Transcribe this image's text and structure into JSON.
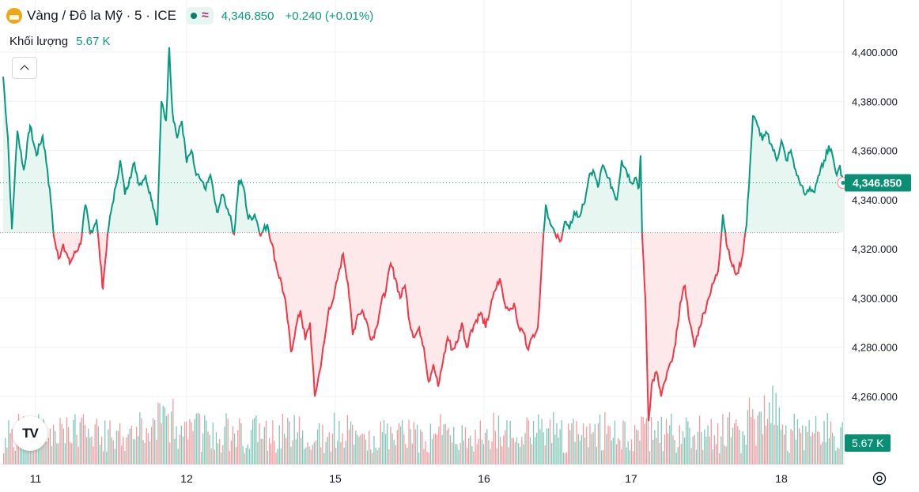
{
  "header": {
    "symbol": "Vàng / Đô la Mỹ · 5 · ICE",
    "approx_symbol": "≈",
    "price": "4,346.850",
    "change": "+0.240 (+0.01%)",
    "volume_label": "Khối lượng",
    "volume_value": "5.67 K"
  },
  "colors": {
    "up": "#089981",
    "down": "#f23645",
    "up_fill": "#e8f6f2",
    "down_fill": "#fde9ea",
    "vol_up": "#7fc7b6",
    "vol_down": "#f39a9e",
    "grid": "#eef0f3",
    "label_bg": "#0b8f74"
  },
  "icons": {
    "logo": "tradingview-logo-icon",
    "collapse": "chevron-up-icon",
    "settings": "settings-icon",
    "symbol": "gold-icon"
  },
  "chart_data": {
    "type": "line",
    "baseline": 4326.6,
    "last_price_label": "4,346.850",
    "volume_label": "5.67 K",
    "ylim": [
      4238,
      4412
    ],
    "yticks": [
      4260,
      4280,
      4300,
      4320,
      4340,
      4360,
      4380,
      4400
    ],
    "ytick_labels": [
      "4,260.000",
      "4,280.000",
      "4,300.000",
      "4,320.000",
      "4,340.000",
      "4,360.000",
      "4,380.000",
      "4,400.000"
    ],
    "x_days": [
      "11",
      "12",
      "15",
      "16",
      "17",
      "18"
    ],
    "grid": true,
    "series": [
      {
        "points": [
          [
            0,
            4390
          ],
          [
            6,
            4365
          ],
          [
            11,
            4328
          ],
          [
            18,
            4368
          ],
          [
            26,
            4352
          ],
          [
            34,
            4370
          ],
          [
            42,
            4358
          ],
          [
            50,
            4366
          ],
          [
            56,
            4352
          ],
          [
            60,
            4340
          ],
          [
            64,
            4325
          ],
          [
            70,
            4316
          ],
          [
            76,
            4322
          ],
          [
            84,
            4314
          ],
          [
            92,
            4319
          ],
          [
            98,
            4322
          ],
          [
            104,
            4338
          ],
          [
            110,
            4326
          ],
          [
            118,
            4332
          ],
          [
            126,
            4304
          ],
          [
            132,
            4326
          ],
          [
            138,
            4338
          ],
          [
            142,
            4345
          ],
          [
            148,
            4356
          ],
          [
            154,
            4342
          ],
          [
            160,
            4349
          ],
          [
            166,
            4355
          ],
          [
            172,
            4346
          ],
          [
            180,
            4350
          ],
          [
            188,
            4340
          ],
          [
            195,
            4330
          ],
          [
            200,
            4380
          ],
          [
            206,
            4372
          ],
          [
            210,
            4402
          ],
          [
            214,
            4376
          ],
          [
            220,
            4365
          ],
          [
            226,
            4372
          ],
          [
            232,
            4355
          ],
          [
            238,
            4360
          ],
          [
            244,
            4350
          ],
          [
            250,
            4348
          ],
          [
            256,
            4344
          ],
          [
            262,
            4350
          ],
          [
            270,
            4335
          ],
          [
            278,
            4342
          ],
          [
            286,
            4334
          ],
          [
            292,
            4326
          ],
          [
            298,
            4348
          ],
          [
            304,
            4345
          ],
          [
            310,
            4332
          ],
          [
            318,
            4334
          ],
          [
            326,
            4326
          ],
          [
            334,
            4330
          ],
          [
            340,
            4322
          ],
          [
            346,
            4312
          ],
          [
            352,
            4306
          ],
          [
            358,
            4296
          ],
          [
            364,
            4278
          ],
          [
            370,
            4288
          ],
          [
            376,
            4295
          ],
          [
            382,
            4283
          ],
          [
            388,
            4290
          ],
          [
            394,
            4260
          ],
          [
            400,
            4270
          ],
          [
            406,
            4282
          ],
          [
            412,
            4296
          ],
          [
            418,
            4300
          ],
          [
            424,
            4310
          ],
          [
            430,
            4318
          ],
          [
            436,
            4306
          ],
          [
            442,
            4285
          ],
          [
            448,
            4293
          ],
          [
            454,
            4295
          ],
          [
            460,
            4290
          ],
          [
            466,
            4283
          ],
          [
            472,
            4288
          ],
          [
            478,
            4298
          ],
          [
            484,
            4303
          ],
          [
            490,
            4314
          ],
          [
            496,
            4308
          ],
          [
            502,
            4300
          ],
          [
            508,
            4305
          ],
          [
            514,
            4290
          ],
          [
            520,
            4284
          ],
          [
            526,
            4288
          ],
          [
            532,
            4280
          ],
          [
            538,
            4266
          ],
          [
            544,
            4273
          ],
          [
            550,
            4264
          ],
          [
            556,
            4274
          ],
          [
            562,
            4284
          ],
          [
            568,
            4279
          ],
          [
            574,
            4282
          ],
          [
            580,
            4290
          ],
          [
            586,
            4280
          ],
          [
            592,
            4287
          ],
          [
            598,
            4291
          ],
          [
            604,
            4294
          ],
          [
            610,
            4288
          ],
          [
            616,
            4296
          ],
          [
            622,
            4303
          ],
          [
            628,
            4308
          ],
          [
            634,
            4298
          ],
          [
            640,
            4295
          ],
          [
            646,
            4298
          ],
          [
            652,
            4288
          ],
          [
            658,
            4286
          ],
          [
            664,
            4279
          ],
          [
            670,
            4285
          ],
          [
            676,
            4288
          ],
          [
            682,
            4320
          ],
          [
            686,
            4338
          ],
          [
            692,
            4330
          ],
          [
            698,
            4326
          ],
          [
            704,
            4323
          ],
          [
            710,
            4331
          ],
          [
            716,
            4328
          ],
          [
            722,
            4335
          ],
          [
            728,
            4333
          ],
          [
            734,
            4338
          ],
          [
            740,
            4348
          ],
          [
            746,
            4352
          ],
          [
            752,
            4345
          ],
          [
            758,
            4354
          ],
          [
            764,
            4349
          ],
          [
            770,
            4345
          ],
          [
            776,
            4340
          ],
          [
            782,
            4356
          ],
          [
            788,
            4352
          ],
          [
            794,
            4347
          ],
          [
            800,
            4349
          ],
          [
            804,
            4345
          ],
          [
            806,
            4358
          ],
          [
            808,
            4325
          ],
          [
            812,
            4300
          ],
          [
            816,
            4250
          ],
          [
            820,
            4265
          ],
          [
            826,
            4270
          ],
          [
            832,
            4260
          ],
          [
            838,
            4267
          ],
          [
            844,
            4274
          ],
          [
            850,
            4281
          ],
          [
            856,
            4298
          ],
          [
            862,
            4305
          ],
          [
            868,
            4290
          ],
          [
            874,
            4280
          ],
          [
            880,
            4288
          ],
          [
            886,
            4294
          ],
          [
            892,
            4300
          ],
          [
            898,
            4306
          ],
          [
            904,
            4311
          ],
          [
            910,
            4334
          ],
          [
            916,
            4320
          ],
          [
            922,
            4313
          ],
          [
            928,
            4310
          ],
          [
            934,
            4316
          ],
          [
            940,
            4330
          ],
          [
            944,
            4352
          ],
          [
            948,
            4374
          ],
          [
            954,
            4370
          ],
          [
            960,
            4364
          ],
          [
            966,
            4367
          ],
          [
            972,
            4362
          ],
          [
            978,
            4356
          ],
          [
            984,
            4364
          ],
          [
            990,
            4356
          ],
          [
            996,
            4360
          ],
          [
            1002,
            4352
          ],
          [
            1008,
            4346
          ],
          [
            1014,
            4342
          ],
          [
            1020,
            4345
          ],
          [
            1026,
            4343
          ],
          [
            1032,
            4350
          ],
          [
            1038,
            4356
          ],
          [
            1044,
            4362
          ],
          [
            1050,
            4356
          ],
          [
            1054,
            4350
          ],
          [
            1058,
            4354
          ],
          [
            1062,
            4346.85
          ]
        ]
      }
    ]
  }
}
